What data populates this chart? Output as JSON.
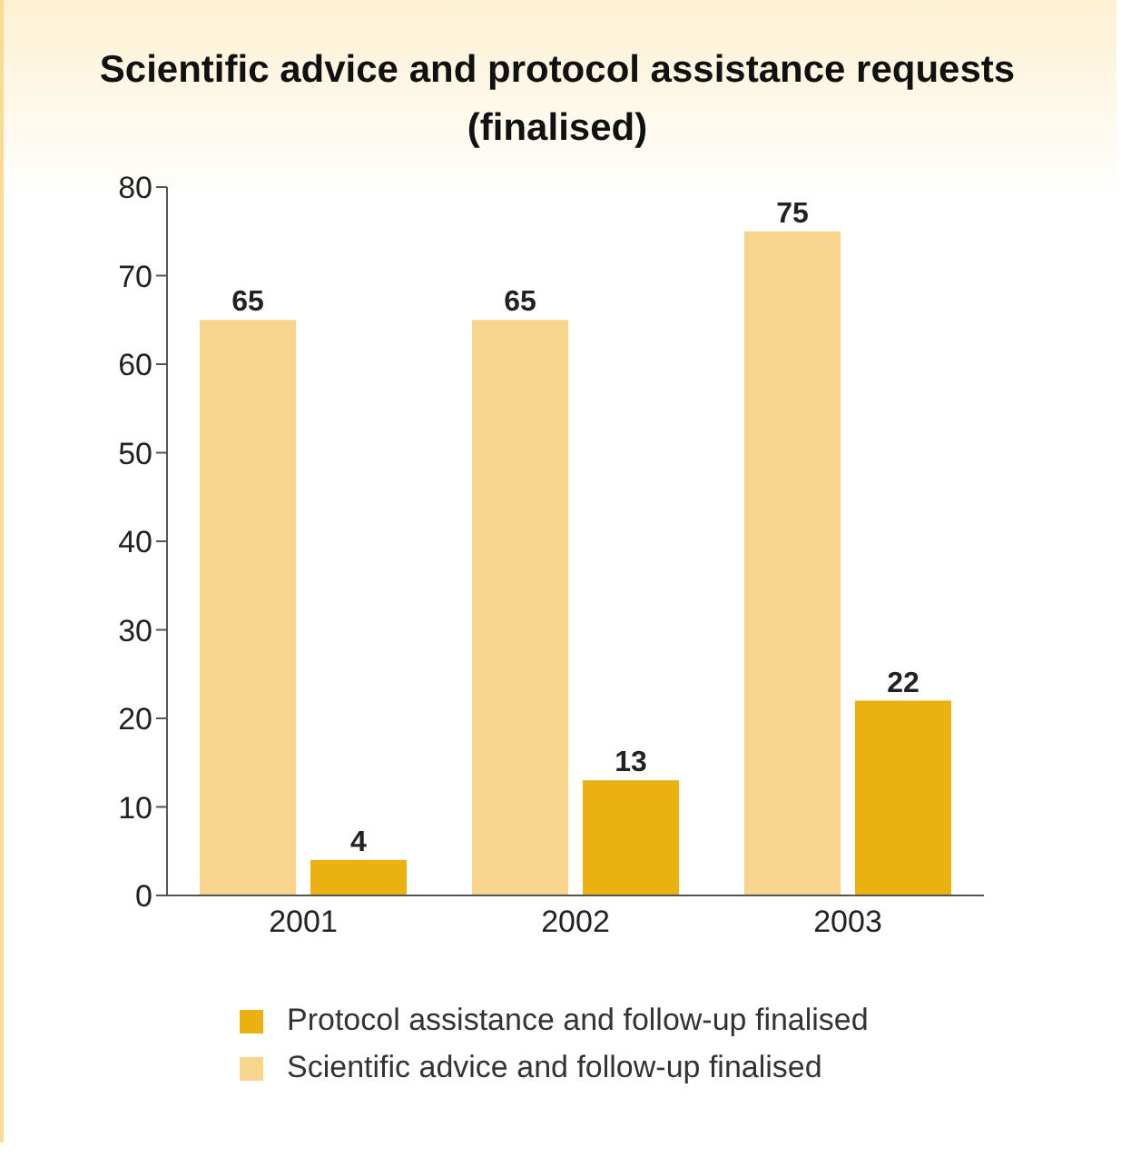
{
  "chart_data": {
    "type": "bar",
    "title": "Scientific advice and protocol assistance requests (finalised)",
    "categories": [
      "2001",
      "2002",
      "2003"
    ],
    "series": [
      {
        "name": "Protocol assistance and follow-up finalised",
        "color": "#ebb111",
        "values": [
          4,
          13,
          22
        ]
      },
      {
        "name": "Scientific advice and follow-up finalised",
        "color": "#f8d58c",
        "values": [
          65,
          65,
          75
        ]
      }
    ],
    "ylim": [
      0,
      80
    ],
    "yticks": [
      0,
      10,
      20,
      30,
      40,
      50,
      60,
      70,
      80
    ],
    "grid": false,
    "legend": "bottom",
    "data_labels": true
  }
}
